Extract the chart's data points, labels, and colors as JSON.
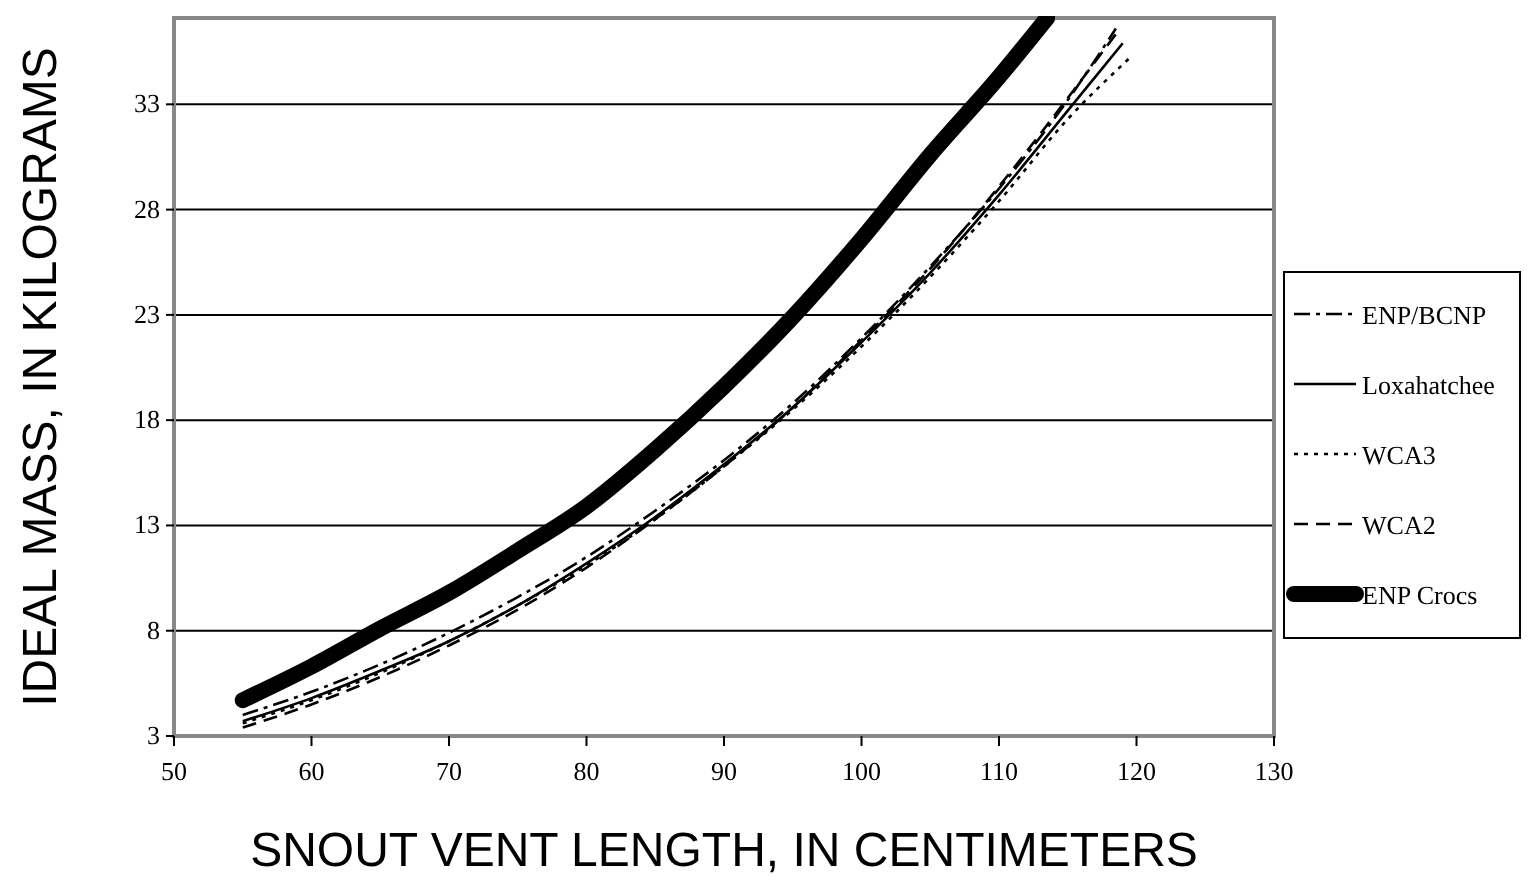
{
  "chart_data": {
    "type": "line",
    "xlabel": "SNOUT VENT LENGTH, IN CENTIMETERS",
    "ylabel": "IDEAL MASS, IN KILOGRAMS",
    "xlim": [
      50,
      130
    ],
    "xticks": [
      50,
      60,
      70,
      80,
      90,
      100,
      110,
      120,
      130
    ],
    "ylim": [
      3,
      37.1
    ],
    "yticks": [
      3,
      8,
      13,
      18,
      23,
      28,
      33
    ],
    "grid": "y",
    "legend": "right",
    "series": [
      {
        "name": "ENP/BCNP",
        "color": "#000000",
        "line_style": "dashdot",
        "x": [
          55,
          60,
          65,
          70,
          75,
          80,
          85,
          90,
          95,
          100,
          105,
          110,
          115,
          118.5
        ],
        "values": [
          4.0,
          5.1,
          6.4,
          7.9,
          9.6,
          11.5,
          13.7,
          16.1,
          18.8,
          21.9,
          25.3,
          29.0,
          33.2,
          36.6
        ]
      },
      {
        "name": "Loxahatchee",
        "color": "#000000",
        "line_style": "solid",
        "x": [
          55,
          60,
          65,
          70,
          75,
          80,
          85,
          90,
          95,
          100,
          105,
          110,
          115,
          119
        ],
        "values": [
          3.7,
          4.8,
          6.1,
          7.5,
          9.2,
          11.2,
          13.4,
          15.9,
          18.6,
          21.7,
          25.0,
          28.7,
          32.7,
          35.9
        ]
      },
      {
        "name": "WCA3",
        "color": "#000000",
        "line_style": "dotted",
        "x": [
          55,
          60,
          65,
          70,
          75,
          80,
          85,
          90,
          95,
          100,
          105,
          110,
          115,
          119.5
        ],
        "values": [
          3.6,
          4.7,
          6.0,
          7.5,
          9.2,
          11.1,
          13.3,
          15.8,
          18.5,
          21.5,
          24.8,
          28.4,
          32.3,
          35.2
        ]
      },
      {
        "name": "WCA2",
        "color": "#000000",
        "line_style": "dashed",
        "x": [
          55,
          60,
          65,
          70,
          75,
          80,
          85,
          90,
          95,
          100,
          105,
          110,
          115,
          118.8
        ],
        "values": [
          3.4,
          4.5,
          5.8,
          7.3,
          9.0,
          11.0,
          13.3,
          15.8,
          18.6,
          21.8,
          25.2,
          29.1,
          33.3,
          36.6
        ]
      },
      {
        "name": "ENP Crocs",
        "color": "#000000",
        "line_style": "solid",
        "x": [
          55,
          60,
          65,
          70,
          75,
          80,
          85,
          90,
          95,
          100,
          105,
          110,
          113.5
        ],
        "values": [
          4.7,
          6.3,
          8.1,
          9.8,
          11.8,
          13.9,
          16.6,
          19.6,
          22.9,
          26.6,
          30.6,
          34.3,
          37.1
        ]
      }
    ]
  }
}
